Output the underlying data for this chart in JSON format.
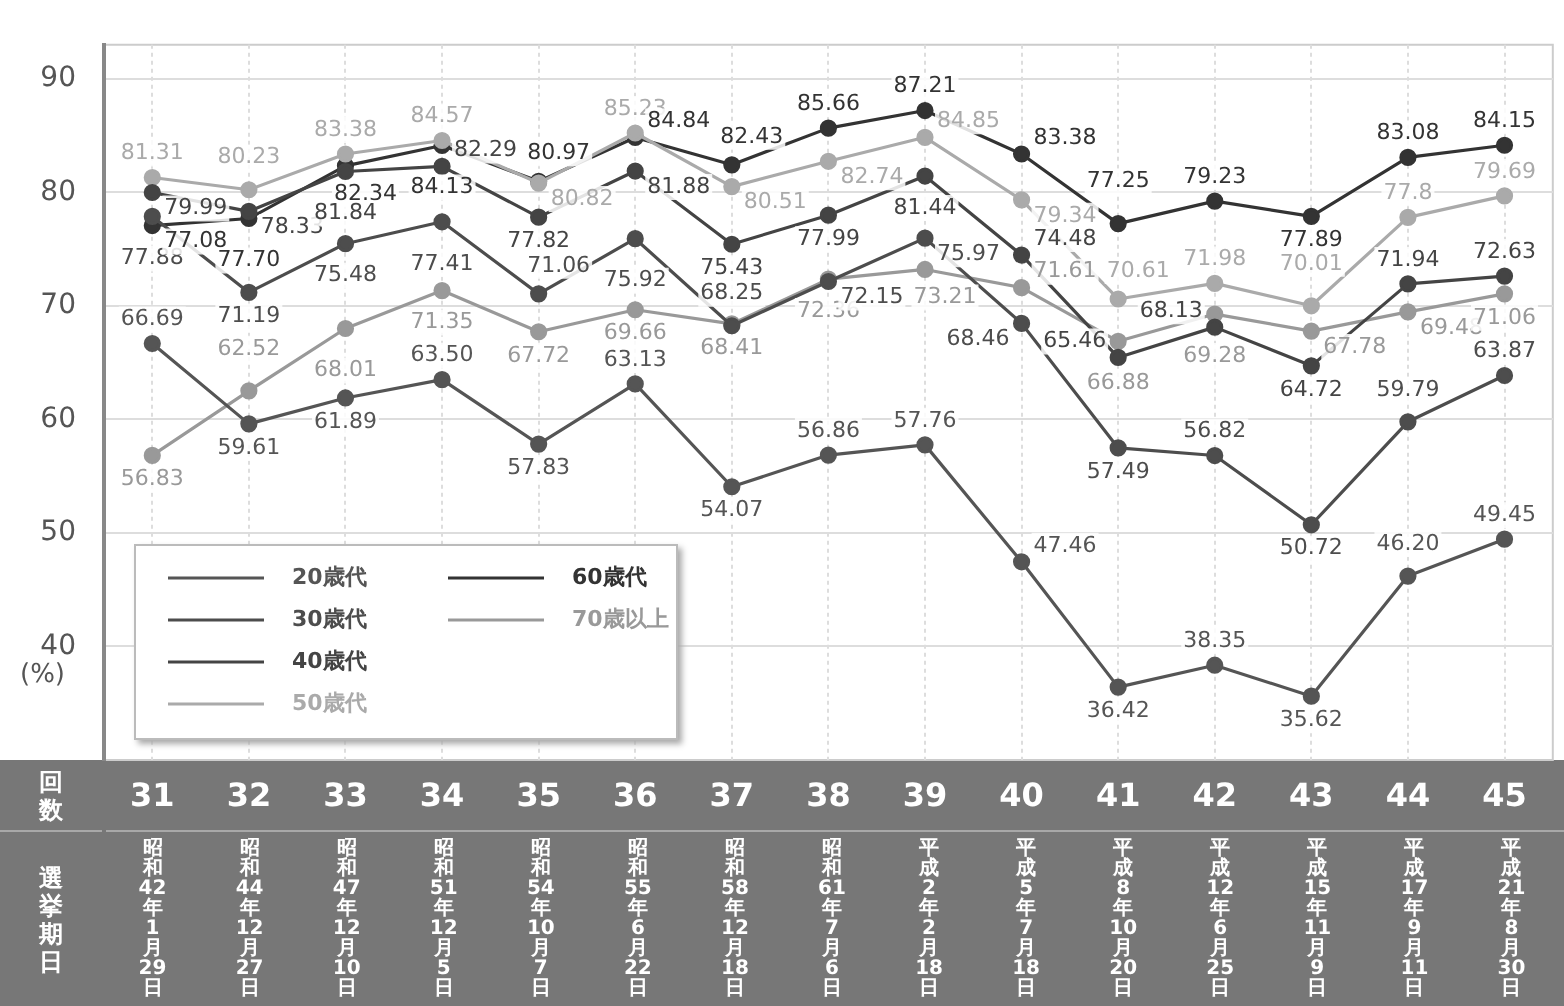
{
  "chart_data": {
    "type": "line",
    "ylabel": "(%)",
    "categories": [
      "31",
      "32",
      "33",
      "34",
      "35",
      "36",
      "37",
      "38",
      "39",
      "40",
      "41",
      "42",
      "43",
      "44",
      "45"
    ],
    "ylim": [
      30,
      93
    ],
    "yticks": [
      40,
      50,
      60,
      70,
      80,
      90
    ],
    "grid": true,
    "legend": "bottom left",
    "marker": "circle",
    "line_style": "solid",
    "series": [
      {
        "name": "20歳代",
        "color": "#555555",
        "values": [
          66.69,
          59.61,
          61.89,
          63.5,
          57.83,
          63.13,
          54.07,
          56.86,
          57.76,
          47.46,
          36.42,
          38.35,
          35.62,
          46.2,
          49.45
        ],
        "value_labels": [
          "66.69",
          "59.61",
          "61.89",
          "63.50",
          "57.83",
          "63.13",
          "54.07",
          "56.86",
          "57.76",
          "47.46",
          "36.42",
          "38.35",
          "35.62",
          "46.20",
          "49.45"
        ]
      },
      {
        "name": "30歳代",
        "color": "#4d4d4d",
        "values": [
          77.88,
          71.19,
          75.48,
          77.41,
          71.06,
          75.92,
          68.25,
          72.15,
          75.97,
          68.46,
          57.49,
          56.82,
          50.72,
          59.79,
          63.87
        ],
        "value_labels": [
          "77.88",
          "71.19",
          "75.48",
          "77.41",
          "71.06",
          "75.92",
          "68.25",
          "72.15",
          "75.97",
          "68.46",
          "57.49",
          "56.82",
          "50.72",
          "59.79",
          "63.87"
        ]
      },
      {
        "name": "40歳代",
        "color": "#444444",
        "values": [
          79.99,
          78.33,
          81.84,
          82.29,
          77.82,
          81.88,
          75.43,
          77.99,
          81.44,
          74.48,
          65.46,
          68.13,
          64.72,
          71.94,
          72.63
        ],
        "value_labels": [
          "79.99",
          "78.33",
          "81.84",
          "82.29",
          "77.82",
          "81.88",
          "75.43",
          "77.99",
          "81.44",
          "74.48",
          "65.46",
          "68.13",
          "64.72",
          "71.94",
          "72.63"
        ]
      },
      {
        "name": "50歳代",
        "color": "#aaaaaa",
        "values": [
          81.31,
          80.23,
          83.38,
          84.57,
          80.82,
          85.23,
          80.51,
          82.74,
          84.85,
          79.34,
          70.61,
          71.98,
          70.01,
          77.8,
          79.69
        ],
        "value_labels": [
          "81.31",
          "80.23",
          "83.38",
          "84.57",
          "80.82",
          "85.23",
          "80.51",
          "82.74",
          "84.85",
          "79.34",
          "70.61",
          "71.98",
          "70.01",
          "77.8",
          "79.69"
        ]
      },
      {
        "name": "60歳代",
        "color": "#333333",
        "values": [
          77.08,
          77.7,
          82.34,
          84.13,
          80.97,
          84.84,
          82.43,
          85.66,
          87.21,
          83.38,
          77.25,
          79.23,
          77.89,
          83.08,
          84.15
        ],
        "value_labels": [
          "77.08",
          "77.70",
          "82.34",
          "84.13",
          "80.97",
          "84.84",
          "82.43",
          "85.66",
          "87.21",
          "83.38",
          "77.25",
          "79.23",
          "77.89",
          "83.08",
          "84.15"
        ]
      },
      {
        "name": "70歳以上",
        "color": "#999999",
        "values": [
          56.83,
          62.52,
          68.01,
          71.35,
          67.72,
          69.66,
          68.41,
          72.36,
          73.21,
          71.61,
          66.88,
          69.28,
          67.78,
          69.48,
          71.06
        ],
        "value_labels": [
          "56.83",
          "62.52",
          "68.01",
          "71.35",
          "67.72",
          "69.66",
          "68.41",
          "72.36",
          "73.21",
          "71.61",
          "66.88",
          "69.28",
          "67.78",
          "69.48",
          "71.06"
        ]
      }
    ],
    "annotations": [
      "回数",
      "選挙期日",
      "昭和42年1月29日",
      "昭和44年12月27日",
      "昭和47年12月10日",
      "昭和51年12月5日",
      "昭和54年10月7日",
      "昭和55年6月22日",
      "昭和58年12月18日",
      "昭和61年7月6日",
      "平成2年2月18日",
      "平成5年7月18日",
      "平成8年10月20日",
      "平成12年6月25日",
      "平成15年11月9日",
      "平成17年9月11日",
      "平成21年8月30日"
    ]
  }
}
